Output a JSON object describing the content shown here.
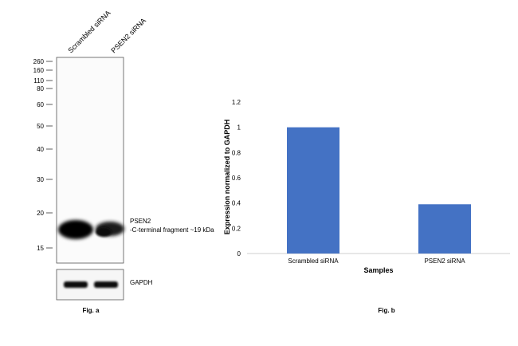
{
  "panel_a": {
    "lane_labels": [
      "Scrambled siRNA",
      "PSEN2 siRNA"
    ],
    "mw_markers": [
      "260",
      "160",
      "110",
      "80",
      "60",
      "50",
      "40",
      "30",
      "20",
      "15"
    ],
    "band_label_line1": "PSEN2",
    "band_label_line2": "-C-terminal fragment ~19 kDa",
    "loading_control_label": "GAPDH",
    "caption": "Fig. a"
  },
  "panel_b": {
    "caption": "Fig. b"
  },
  "chart_data": {
    "type": "bar",
    "categories": [
      "Scrambled siRNA",
      "PSEN2 siRNA"
    ],
    "values": [
      1.0,
      0.39
    ],
    "xlabel": "Samples",
    "ylabel": "Expression normalized to GAPDH",
    "ylim": [
      0,
      1.2
    ],
    "yticks": [
      "0",
      "0.2",
      "0.4",
      "0.6",
      "0.8",
      "1",
      "1.2"
    ],
    "grid": false,
    "bar_color": "#4472C4"
  }
}
